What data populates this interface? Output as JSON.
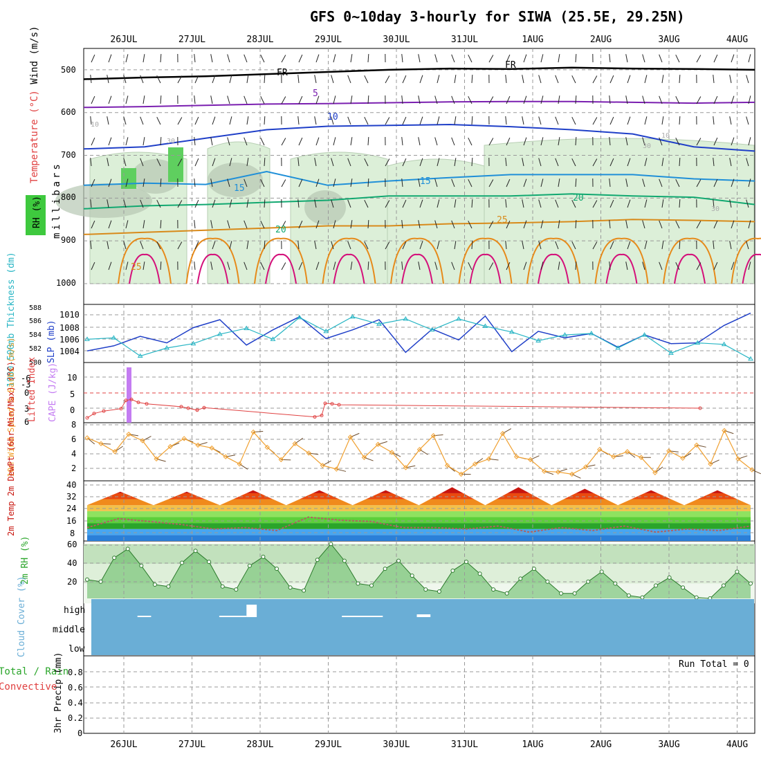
{
  "title": "GFS 0~10day 3-hourly for SIWA (25.5E, 29.25N)",
  "run_total_label": "Run Total = 0",
  "colors": {
    "temp_tiers": [
      "#2b7fd8",
      "#48a6f0",
      "#2aa52a",
      "#5ccf3a",
      "#8fe260",
      "#f2c14a",
      "#f08a1c",
      "#ea4a0f",
      "#c8150e",
      "#8a0000"
    ],
    "rh_fill": "#9fd19a",
    "cloud_fill": "#6aaed6",
    "slp_line": "#1f3fc8",
    "thickness_line": "#27b5c4",
    "wind_line": "#f0a030",
    "lifted_line": "#e04040",
    "cape_bar": "#c47cf2",
    "dewpt_line": "#b06060"
  },
  "chart_data": [
    {
      "type": "area",
      "panel": "upper-air",
      "ylabel": [
        "RH (%)",
        "Temperature (°C)",
        "Wind (m/s)"
      ],
      "ylabel_unit": "millibars",
      "y_ticks": [
        500,
        600,
        700,
        800,
        900,
        1000
      ],
      "ylim": [
        450,
        1000
      ],
      "x_dates": [
        "26JUL",
        "27JUL",
        "28JUL",
        "29JUL",
        "30JUL",
        "31JUL",
        "1AUG",
        "2AUG",
        "3AUG",
        "4AUG"
      ],
      "contour_labels": [
        "FR",
        "FR",
        "5",
        "10",
        "15",
        "15",
        "20",
        "20",
        "25",
        "25",
        "10",
        "30",
        "30",
        "10",
        "30"
      ],
      "isotherms": [
        {
          "name": "FR",
          "level_mb": [
            522,
            518,
            515,
            510,
            505,
            500,
            497,
            498,
            495,
            497,
            498,
            500
          ]
        },
        {
          "name": "5",
          "level_mb": [
            588,
            586,
            583,
            580,
            579,
            577,
            575,
            574,
            574,
            576,
            578,
            576
          ]
        },
        {
          "name": "10",
          "level_mb": [
            685,
            680,
            660,
            640,
            632,
            630,
            628,
            633,
            640,
            650,
            680,
            690
          ]
        },
        {
          "name": "15",
          "level_mb": [
            770,
            765,
            768,
            738,
            770,
            760,
            752,
            745,
            745,
            745,
            755,
            760
          ]
        },
        {
          "name": "20",
          "level_mb": [
            825,
            818,
            815,
            810,
            805,
            795,
            795,
            795,
            790,
            795,
            798,
            815
          ]
        },
        {
          "name": "25",
          "level_mb": [
            885,
            880,
            875,
            870,
            865,
            865,
            860,
            858,
            855,
            850,
            852,
            855
          ]
        }
      ]
    },
    {
      "type": "line",
      "panel": "slp-thickness",
      "series": [
        {
          "name": "SLP (mb)",
          "axis_ticks": [
            1004,
            1006,
            1008,
            1010
          ],
          "values": [
            1004.6,
            1005.3,
            1006.6,
            1005.7,
            1007.8,
            1008.9,
            1005.4,
            1007.5,
            1009.3,
            1006.3,
            1007.5,
            1008.9,
            1004.4,
            1007.6,
            1006.1,
            1009.4,
            1004.5,
            1007.3,
            1006.4,
            1007.0,
            1005.1,
            1006.8,
            1005.6,
            1005.7,
            1008.1,
            1009.8
          ]
        },
        {
          "name": "1000-500mb Thickness (dm)",
          "axis_ticks": [
            580,
            582,
            584,
            586,
            588
          ],
          "values": [
            583.2,
            583.4,
            580.9,
            582.0,
            582.6,
            583.9,
            584.7,
            583.2,
            586.2,
            584.3,
            586.3,
            585.3,
            586.0,
            584.5,
            586.0,
            585.0,
            584.2,
            583.0,
            583.8,
            584.0,
            582.0,
            583.8,
            581.3,
            582.7,
            582.5,
            580.5
          ]
        }
      ]
    },
    {
      "type": "bar",
      "panel": "stability",
      "series": [
        {
          "name": "Lifted Index",
          "axis_ticks": [
            "-6",
            "-3",
            "0",
            "3",
            "6"
          ],
          "values": [
            5.0,
            4.1,
            3.6,
            3.1,
            1.4,
            1.2,
            1.8,
            2.1,
            2.7,
            3.0,
            3.4,
            2.9,
            4.8,
            4.5,
            2.0,
            2.1,
            2.3,
            3.0
          ]
        },
        {
          "name": "CAPE (J/kg)",
          "axis_ticks": [
            "0",
            "5",
            "10"
          ],
          "values": [
            12.5
          ]
        }
      ]
    },
    {
      "type": "line",
      "panel": "wind10m",
      "ylabel": "10m Wind Speed & Barbs (m/s)",
      "y_ticks": [
        2,
        4,
        6,
        8
      ],
      "values": [
        6.2,
        5.4,
        4.3,
        6.7,
        5.8,
        3.3,
        5.0,
        6.1,
        5.2,
        4.8,
        3.6,
        2.6,
        7.0,
        4.9,
        3.2,
        5.4,
        4.1,
        2.4,
        1.9,
        6.3,
        3.5,
        5.3,
        4.2,
        2.1,
        4.6,
        6.5,
        2.4,
        1.2,
        2.6,
        3.3,
        6.8,
        3.6,
        3.2,
        1.6,
        1.5,
        1.2,
        2.2,
        4.6,
        3.6,
        4.3,
        3.5,
        1.4,
        4.4,
        3.4,
        5.2,
        2.6,
        7.2,
        3.3,
        1.8
      ]
    },
    {
      "type": "line",
      "panel": "temperature",
      "ylabel": "2m Temp 2m DewPt (6hr Min/Max) (°C)",
      "y_ticks": [
        8,
        16,
        24,
        32,
        40
      ],
      "series": [
        {
          "name": "2m Temp",
          "values": [
            28,
            37,
            28,
            37,
            28,
            38,
            28,
            38,
            28,
            38,
            28,
            40,
            28,
            40,
            28,
            39,
            28,
            38,
            28,
            38,
            28
          ]
        },
        {
          "name": "2m DewPt",
          "values": [
            13,
            19,
            17,
            15,
            12,
            13,
            11,
            20,
            18,
            17,
            13,
            13,
            12,
            14,
            10,
            13,
            11,
            14,
            10,
            12,
            11,
            14
          ]
        }
      ]
    },
    {
      "type": "area",
      "panel": "rh2m",
      "ylabel": "2m RH (%)",
      "y_ticks": [
        20,
        40,
        60
      ],
      "values": [
        24,
        22,
        46,
        55,
        38,
        19,
        17,
        41,
        53,
        42,
        17,
        14,
        38,
        47,
        35,
        16,
        13,
        44,
        60,
        43,
        20,
        18,
        35,
        43,
        28,
        14,
        12,
        33,
        42,
        30,
        14,
        10,
        25,
        35,
        22,
        10,
        10,
        22,
        32,
        20,
        8,
        6,
        18,
        26,
        16,
        6,
        5,
        18,
        32,
        20
      ]
    },
    {
      "type": "bar",
      "panel": "cloud-cover",
      "ylabel": "Cloud Cover (%)",
      "y_ticks": [
        "high",
        "middle",
        "low"
      ],
      "high_level_segments": [
        [
          1.2,
          1.4,
          2
        ],
        [
          2.4,
          2.8,
          2
        ],
        [
          2.8,
          2.95,
          18
        ],
        [
          4.2,
          4.8,
          2
        ],
        [
          5.3,
          5.5,
          4
        ]
      ]
    },
    {
      "type": "line",
      "panel": "precip",
      "ylabel": "3hr Precip (mm)",
      "legend": [
        "Total / Rain",
        "Convective"
      ],
      "y_ticks": [
        "0",
        "0.2",
        "0.4",
        "0.6",
        "0.8"
      ],
      "values": [
        0,
        0,
        0,
        0,
        0,
        0,
        0,
        0,
        0,
        0
      ]
    }
  ]
}
